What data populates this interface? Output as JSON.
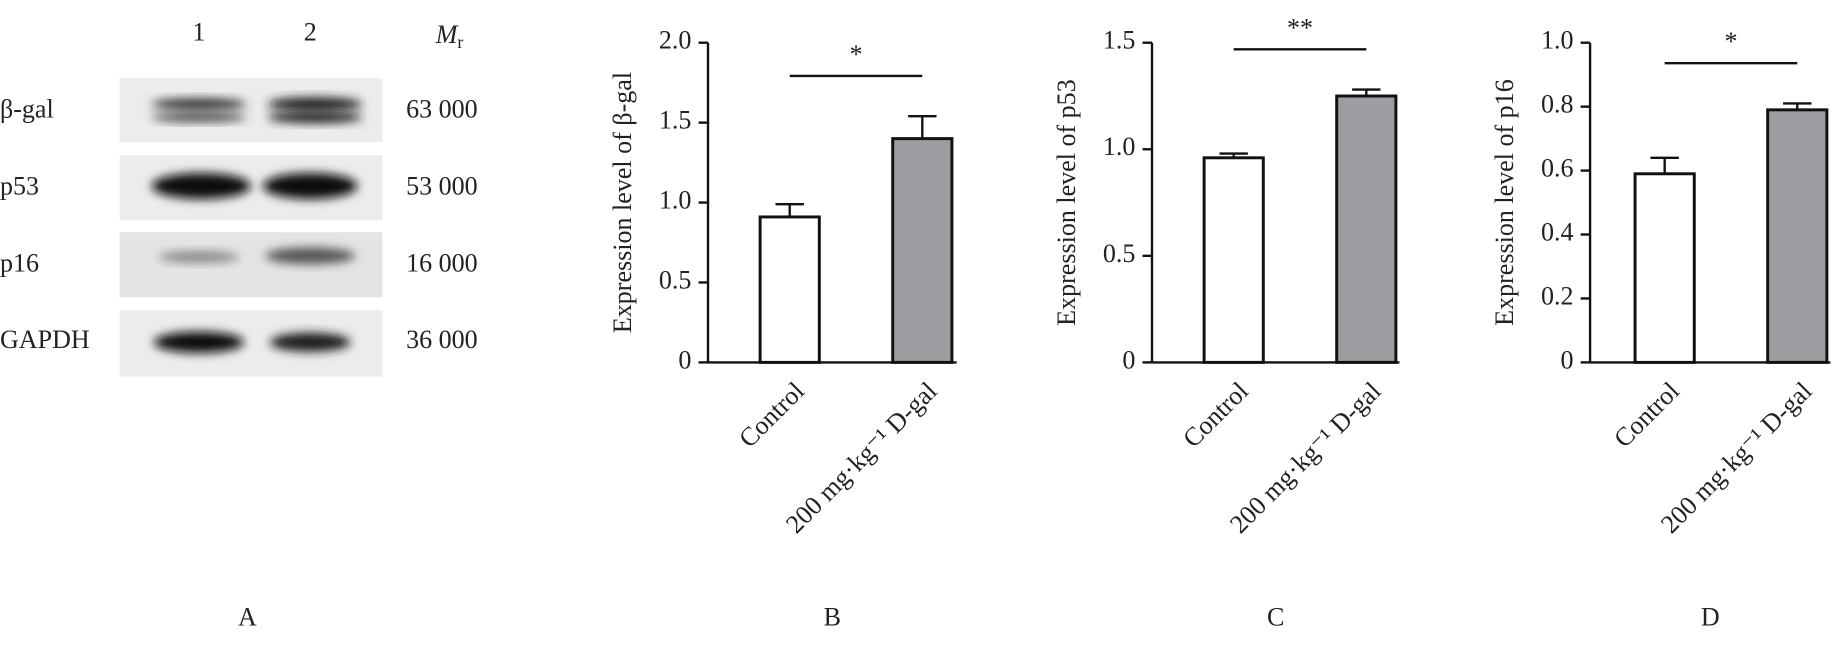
{
  "blot": {
    "panel": "A",
    "lanes": [
      "1",
      "2"
    ],
    "mr_label": "M",
    "mr_subscript": "r",
    "rows": [
      {
        "protein": "β-gal",
        "mr": "63 000"
      },
      {
        "protein": "p53",
        "mr": "53 000"
      },
      {
        "protein": "p16",
        "mr": "16 000"
      },
      {
        "protein": "GAPDH",
        "mr": "36 000"
      }
    ]
  },
  "chart_data": [
    {
      "type": "bar",
      "panel": "B",
      "y_label": "Expression level of β-gal",
      "categories": [
        "Control",
        "200 mg·kg⁻¹ D-gal"
      ],
      "values": [
        0.91,
        1.4
      ],
      "errors": [
        0.08,
        0.14
      ],
      "colors": [
        "#ffffff",
        "#9d9ca1"
      ],
      "significance": "*",
      "ylim": [
        0,
        2
      ],
      "yticks": [
        0,
        0.5,
        {
          "value": 1,
          "label": "1.0"
        },
        1.5,
        {
          "value": 2,
          "label": "2.0"
        }
      ]
    },
    {
      "type": "bar",
      "panel": "C",
      "y_label": "Expression level of p53",
      "categories": [
        "Control",
        "200 mg·kg⁻¹ D-gal"
      ],
      "values": [
        0.96,
        1.25
      ],
      "errors": [
        0.02,
        0.03
      ],
      "colors": [
        "#ffffff",
        "#9d9ca1"
      ],
      "significance": "**",
      "ylim": [
        0,
        1.5
      ],
      "yticks": [
        0,
        0.5,
        {
          "value": 1,
          "label": "1.0"
        },
        1.5
      ]
    },
    {
      "type": "bar",
      "panel": "D",
      "y_label": "Expression level of p16",
      "categories": [
        "Control",
        "200 mg·kg⁻¹ D-gal"
      ],
      "values": [
        0.59,
        0.79
      ],
      "errors": [
        0.05,
        0.02
      ],
      "colors": [
        "#ffffff",
        "#9d9ca1"
      ],
      "significance": "*",
      "ylim": [
        0,
        1
      ],
      "yticks": [
        0,
        0.2,
        0.4,
        0.6,
        0.8,
        {
          "value": 1,
          "label": "1.0"
        }
      ]
    }
  ]
}
